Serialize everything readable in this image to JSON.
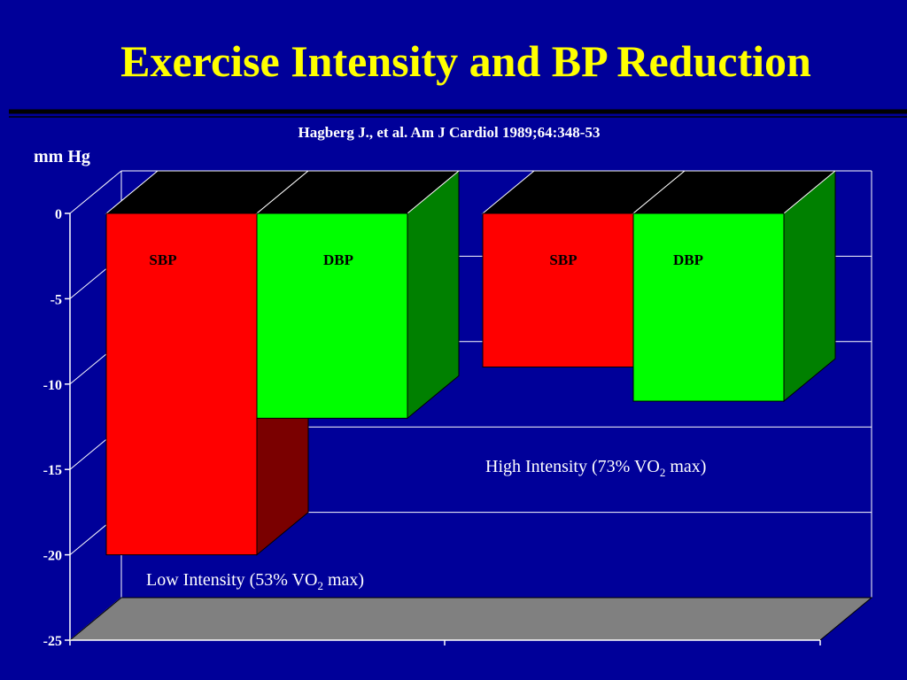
{
  "title": "Exercise Intensity and BP Reduction",
  "citation": "Hagberg J., et al.  Am J Cardiol 1989;64:348-53",
  "colors": {
    "background": "#000099",
    "title": "#FFFF00",
    "sbp_front": "#FF0000",
    "sbp_side": "#7A0000",
    "dbp_front": "#00FF00",
    "dbp_side": "#008000",
    "bar_top": "#000000",
    "floor": "#808080",
    "text": "#FFFFFF",
    "bar_label": "#000000"
  },
  "chart_data": {
    "type": "bar",
    "ylabel": "mm Hg",
    "ylim": [
      -25,
      0
    ],
    "yticks": [
      0,
      -5,
      -10,
      -15,
      -20,
      -25
    ],
    "ytick_labels": [
      "0",
      "-5",
      "-10",
      "-15",
      "-20",
      "-25"
    ],
    "grid": true,
    "three_d": true,
    "groups": [
      {
        "label_main": "Low Intensity (53% VO",
        "label_sub": "2",
        "label_tail": " max)",
        "bars": [
          {
            "name": "SBP",
            "value": -20,
            "color": "#FF0000"
          },
          {
            "name": "DBP",
            "value": -12,
            "color": "#00FF00"
          }
        ]
      },
      {
        "label_main": "High Intensity (73% VO",
        "label_sub": "2",
        "label_tail": " max)",
        "bars": [
          {
            "name": "SBP",
            "value": -9,
            "color": "#FF0000"
          },
          {
            "name": "DBP",
            "value": -11,
            "color": "#00FF00"
          }
        ]
      }
    ]
  }
}
